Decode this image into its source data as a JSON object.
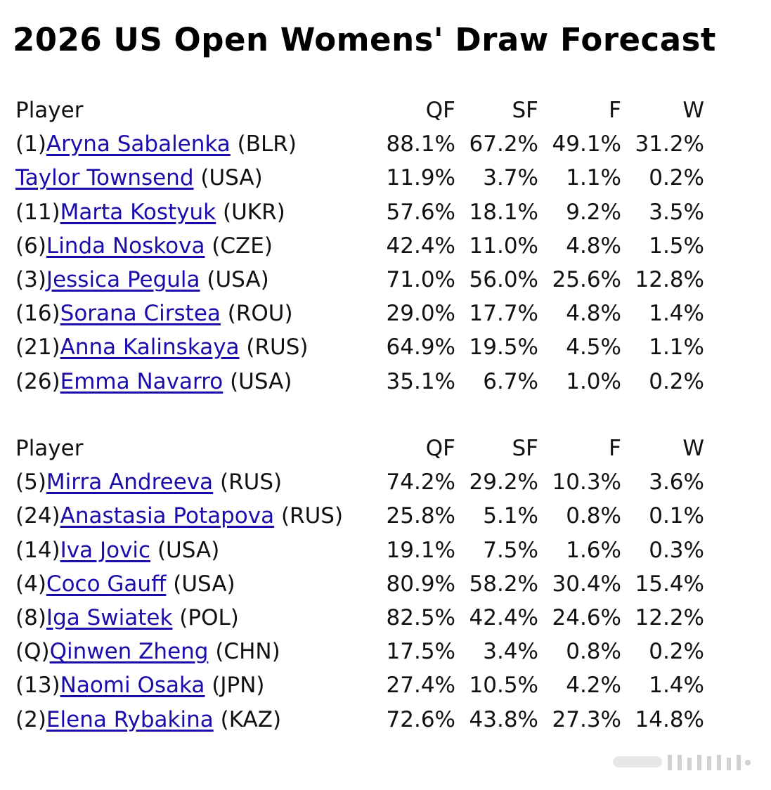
{
  "title": "2026 US Open Womens' Draw Forecast",
  "headers": {
    "player": "Player",
    "qf": "QF",
    "sf": "SF",
    "f": "F",
    "w": "W"
  },
  "sections": [
    {
      "rows": [
        {
          "seed": "(1)",
          "name": "Aryna Sabalenka",
          "country": " (BLR)",
          "qf": "88.1%",
          "sf": "67.2%",
          "f": "49.1%",
          "w": "31.2%"
        },
        {
          "seed": "",
          "name": "Taylor Townsend",
          "country": " (USA)",
          "qf": "11.9%",
          "sf": "3.7%",
          "f": "1.1%",
          "w": "0.2%"
        },
        {
          "seed": "(11)",
          "name": "Marta Kostyuk",
          "country": " (UKR)",
          "qf": "57.6%",
          "sf": "18.1%",
          "f": "9.2%",
          "w": "3.5%"
        },
        {
          "seed": "(6)",
          "name": "Linda Noskova",
          "country": " (CZE)",
          "qf": "42.4%",
          "sf": "11.0%",
          "f": "4.8%",
          "w": "1.5%"
        },
        {
          "seed": "(3)",
          "name": "Jessica Pegula",
          "country": " (USA)",
          "qf": "71.0%",
          "sf": "56.0%",
          "f": "25.6%",
          "w": "12.8%"
        },
        {
          "seed": "(16)",
          "name": "Sorana Cirstea",
          "country": " (ROU)",
          "qf": "29.0%",
          "sf": "17.7%",
          "f": "4.8%",
          "w": "1.4%"
        },
        {
          "seed": "(21)",
          "name": "Anna Kalinskaya",
          "country": " (RUS)",
          "qf": "64.9%",
          "sf": "19.5%",
          "f": "4.5%",
          "w": "1.1%"
        },
        {
          "seed": "(26)",
          "name": "Emma Navarro",
          "country": " (USA)",
          "qf": "35.1%",
          "sf": "6.7%",
          "f": "1.0%",
          "w": "0.2%"
        }
      ]
    },
    {
      "rows": [
        {
          "seed": "(5)",
          "name": "Mirra Andreeva",
          "country": " (RUS)",
          "qf": "74.2%",
          "sf": "29.2%",
          "f": "10.3%",
          "w": "3.6%"
        },
        {
          "seed": "(24)",
          "name": "Anastasia Potapova",
          "country": " (RUS)",
          "qf": "25.8%",
          "sf": "5.1%",
          "f": "0.8%",
          "w": "0.1%"
        },
        {
          "seed": "(14)",
          "name": "Iva Jovic",
          "country": " (USA)",
          "qf": "19.1%",
          "sf": "7.5%",
          "f": "1.6%",
          "w": "0.3%"
        },
        {
          "seed": "(4)",
          "name": "Coco Gauff",
          "country": " (USA)",
          "qf": "80.9%",
          "sf": "58.2%",
          "f": "30.4%",
          "w": "15.4%"
        },
        {
          "seed": "(8)",
          "name": "Iga Swiatek",
          "country": " (POL)",
          "qf": "82.5%",
          "sf": "42.4%",
          "f": "24.6%",
          "w": "12.2%"
        },
        {
          "seed": "(Q)",
          "name": "Qinwen Zheng",
          "country": " (CHN)",
          "qf": "17.5%",
          "sf": "3.4%",
          "f": "0.8%",
          "w": "0.2%"
        },
        {
          "seed": "(13)",
          "name": "Naomi Osaka",
          "country": " (JPN)",
          "qf": "27.4%",
          "sf": "10.5%",
          "f": "4.2%",
          "w": "1.4%"
        },
        {
          "seed": "(2)",
          "name": "Elena Rybakina",
          "country": " (KAZ)",
          "qf": "72.6%",
          "sf": "43.8%",
          "f": "27.3%",
          "w": "14.8%"
        }
      ]
    }
  ],
  "colors": {
    "link": "#1a0dab",
    "text": "#111111"
  }
}
